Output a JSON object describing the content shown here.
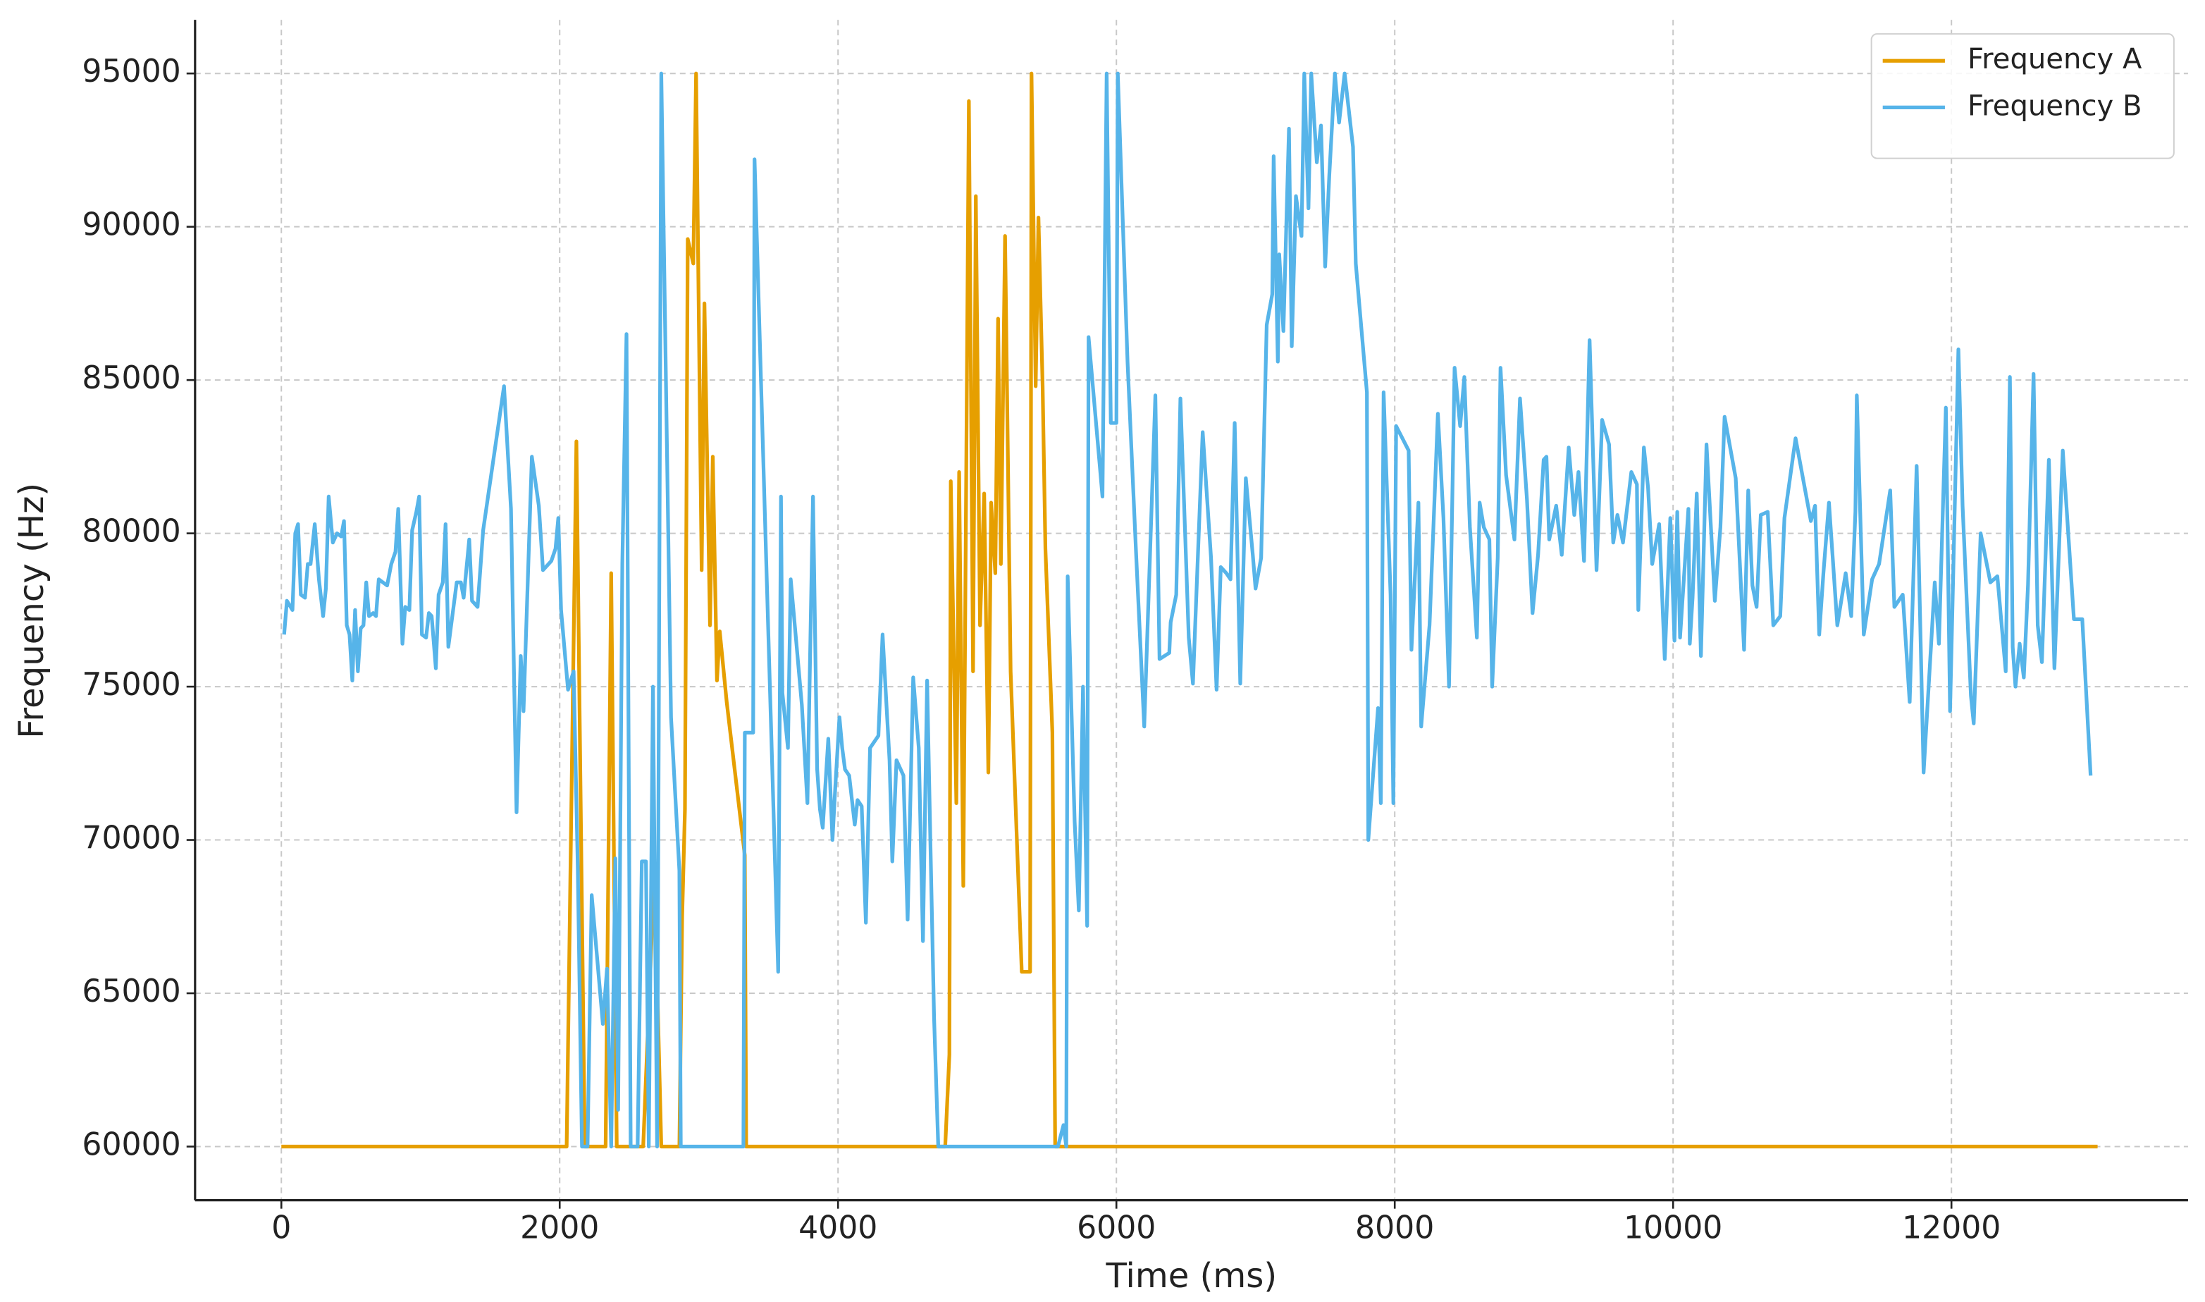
{
  "chart_data": {
    "type": "line",
    "xlabel": "Time (ms)",
    "ylabel": "Frequency (Hz)",
    "xlim": [
      -620,
      13700
    ],
    "ylim": [
      58250,
      96750
    ],
    "xticks": [
      0,
      2000,
      4000,
      6000,
      8000,
      10000,
      12000
    ],
    "yticks": [
      60000,
      65000,
      70000,
      75000,
      80000,
      85000,
      90000,
      95000
    ],
    "grid": true,
    "legend": "upper right",
    "series": [
      {
        "name": "Frequency A",
        "color": "#e69f00",
        "x": [
          0,
          2050,
          2120,
          2180,
          2330,
          2370,
          2410,
          2600,
          2680,
          2730,
          2860,
          2880,
          2900,
          2920,
          2960,
          2980,
          3020,
          3040,
          3080,
          3100,
          3130,
          3150,
          3200,
          3330,
          3340,
          4770,
          4800,
          4810,
          4850,
          4870,
          4900,
          4940,
          4970,
          4990,
          5020,
          5050,
          5080,
          5100,
          5130,
          5150,
          5170,
          5200,
          5240,
          5320,
          5380,
          5390,
          5420,
          5440,
          5470,
          5490,
          5540,
          5560,
          13050
        ],
        "values": [
          60000,
          60000,
          83000,
          60000,
          60000,
          78700,
          60000,
          60000,
          69000,
          60000,
          60000,
          67500,
          71000,
          89600,
          88800,
          95000,
          78800,
          87500,
          77000,
          82500,
          75200,
          76800,
          74500,
          69500,
          60000,
          60000,
          63000,
          81700,
          71200,
          82000,
          68500,
          94100,
          75500,
          91000,
          77000,
          81300,
          72200,
          81000,
          78700,
          87000,
          79000,
          89700,
          75500,
          65700,
          65700,
          95000,
          84800,
          90300,
          84800,
          79500,
          73500,
          60000,
          60000
        ]
      },
      {
        "name": "Frequency B",
        "color": "#56b4e9",
        "x": [
          20,
          40,
          80,
          100,
          120,
          140,
          170,
          190,
          210,
          240,
          270,
          300,
          320,
          340,
          370,
          400,
          430,
          450,
          470,
          490,
          510,
          530,
          550,
          570,
          590,
          610,
          630,
          660,
          680,
          700,
          730,
          760,
          790,
          820,
          840,
          870,
          890,
          920,
          940,
          970,
          990,
          1010,
          1040,
          1060,
          1080,
          1110,
          1130,
          1160,
          1180,
          1200,
          1220,
          1260,
          1290,
          1310,
          1350,
          1370,
          1410,
          1450,
          1600,
          1650,
          1690,
          1720,
          1740,
          1800,
          1850,
          1880,
          1940,
          1970,
          1990,
          2010,
          2060,
          2100,
          2130,
          2160,
          2200,
          2230,
          2310,
          2340,
          2370,
          2400,
          2420,
          2450,
          2480,
          2510,
          2560,
          2590,
          2620,
          2640,
          2670,
          2700,
          2730,
          2800,
          2860,
          2870,
          3320,
          3330,
          3390,
          3400,
          3570,
          3590,
          3600,
          3640,
          3660,
          3740,
          3780,
          3820,
          3850,
          3870,
          3890,
          3930,
          3960,
          3980,
          4010,
          4030,
          4050,
          4080,
          4120,
          4140,
          4170,
          4200,
          4230,
          4290,
          4320,
          4370,
          4390,
          4420,
          4470,
          4500,
          4540,
          4580,
          4610,
          4640,
          4660,
          4690,
          4720,
          5580,
          5620,
          5640,
          5650,
          5700,
          5730,
          5760,
          5790,
          5800,
          5900,
          5930,
          5960,
          6000,
          6010,
          6080,
          6140,
          6200,
          6280,
          6310,
          6380,
          6390,
          6430,
          6460,
          6520,
          6550,
          6620,
          6680,
          6720,
          6750,
          6790,
          6820,
          6850,
          6890,
          6930,
          6980,
          7000,
          7040,
          7080,
          7120,
          7130,
          7160,
          7170,
          7200,
          7240,
          7260,
          7290,
          7330,
          7350,
          7380,
          7400,
          7440,
          7470,
          7500,
          7530,
          7570,
          7600,
          7640,
          7700,
          7720,
          7800,
          7810,
          7880,
          7900,
          7920,
          7970,
          7990,
          8010,
          8100,
          8120,
          8170,
          8190,
          8250,
          8310,
          8350,
          8390,
          8430,
          8470,
          8500,
          8540,
          8590,
          8610,
          8640,
          8680,
          8700,
          8740,
          8760,
          8800,
          8860,
          8900,
          8950,
          8990,
          9030,
          9070,
          9090,
          9110,
          9160,
          9200,
          9250,
          9290,
          9320,
          9360,
          9400,
          9450,
          9490,
          9540,
          9570,
          9600,
          9640,
          9700,
          9740,
          9750,
          9790,
          9820,
          9850,
          9900,
          9940,
          9980,
          10010,
          10030,
          10050,
          10110,
          10120,
          10140,
          10170,
          10200,
          10240,
          10300,
          10340,
          10370,
          10450,
          10510,
          10540,
          10570,
          10600,
          10630,
          10680,
          10720,
          10770,
          10800,
          10880,
          10990,
          11020,
          11050,
          11080,
          11120,
          11180,
          11240,
          11280,
          11310,
          11320,
          11370,
          11430,
          11480,
          11560,
          11590,
          11650,
          11700,
          11750,
          11800,
          11880,
          11910,
          11960,
          11990,
          12050,
          12080,
          12140,
          12160,
          12210,
          12280,
          12330,
          12390,
          12420,
          12440,
          12460,
          12490,
          12520,
          12550,
          12590,
          12620,
          12650,
          12700,
          12740,
          12800,
          12880,
          12940,
          13000
        ],
        "values": [
          76700,
          77800,
          77500,
          80000,
          80300,
          78000,
          77900,
          79000,
          79000,
          80300,
          78500,
          77300,
          78200,
          81200,
          79700,
          80000,
          79900,
          80400,
          77000,
          76700,
          75200,
          77500,
          75500,
          76900,
          77000,
          78400,
          77300,
          77400,
          77300,
          78500,
          78400,
          78300,
          79000,
          79400,
          80800,
          76400,
          77600,
          77500,
          80100,
          80700,
          81200,
          76700,
          76600,
          77400,
          77300,
          75600,
          78000,
          78400,
          80300,
          76300,
          77000,
          78400,
          78400,
          77900,
          79800,
          77800,
          77600,
          80100,
          84800,
          80800,
          70900,
          76000,
          74200,
          82500,
          80900,
          78800,
          79100,
          79500,
          80500,
          77500,
          74900,
          75500,
          69100,
          60000,
          60000,
          68200,
          64000,
          65800,
          60000,
          69400,
          61200,
          79000,
          86500,
          60000,
          60000,
          69300,
          69300,
          60000,
          75000,
          60000,
          95000,
          74000,
          69000,
          60000,
          60000,
          73500,
          73500,
          92200,
          65700,
          81200,
          74800,
          73000,
          78500,
          74400,
          71200,
          81200,
          72300,
          71000,
          70400,
          73300,
          70000,
          71700,
          74000,
          73000,
          72300,
          72100,
          70500,
          71300,
          71100,
          67300,
          73000,
          73400,
          76700,
          72600,
          69300,
          72600,
          72100,
          67400,
          75300,
          73000,
          66700,
          75200,
          70700,
          64200,
          60000,
          60000,
          60700,
          60000,
          78600,
          70600,
          67700,
          75000,
          67200,
          86400,
          81200,
          95000,
          83600,
          83600,
          95000,
          85600,
          79500,
          73700,
          84500,
          75900,
          76100,
          77100,
          78000,
          84400,
          76600,
          75100,
          83300,
          79200,
          74900,
          78900,
          78700,
          78500,
          83600,
          75100,
          81800,
          79300,
          78200,
          79200,
          86800,
          87800,
          92300,
          85600,
          89100,
          86600,
          93200,
          86100,
          91000,
          89700,
          95000,
          90600,
          95000,
          92100,
          93300,
          88700,
          91700,
          95000,
          93400,
          95000,
          92600,
          88800,
          84600,
          70000,
          74300,
          71200,
          84600,
          78000,
          71200,
          83500,
          82700,
          76200,
          81000,
          73700,
          77000,
          83900,
          80500,
          75000,
          85400,
          83500,
          85100,
          80200,
          76600,
          81000,
          80200,
          79800,
          75000,
          79200,
          85400,
          81900,
          79800,
          84400,
          81100,
          77400,
          79300,
          82400,
          82500,
          79800,
          80900,
          79300,
          82800,
          80600,
          82000,
          79100,
          86300,
          78800,
          83700,
          82900,
          79700,
          80600,
          79700,
          82000,
          81600,
          77500,
          82800,
          81500,
          79000,
          80300,
          75900,
          80500,
          76500,
          80700,
          76600,
          80800,
          76400,
          77900,
          81300,
          76000,
          82900,
          77800,
          80200,
          83800,
          81800,
          76200,
          81400,
          78300,
          77600,
          80600,
          80700,
          77000,
          77300,
          80500,
          83100,
          80400,
          80900,
          76700,
          78700,
          81000,
          77000,
          78700,
          77300,
          80700,
          84500,
          76700,
          78500,
          79000,
          81400,
          77600,
          78000,
          74500,
          82200,
          72200,
          78400,
          76400,
          84100,
          74200,
          86000,
          80900,
          74700,
          73800,
          80000,
          78400,
          78600,
          75500,
          85100,
          76300,
          75000,
          76400,
          75300,
          78300,
          85200,
          77000,
          75800,
          82400,
          75600,
          82700,
          77200,
          77200,
          72100
        ]
      }
    ]
  }
}
